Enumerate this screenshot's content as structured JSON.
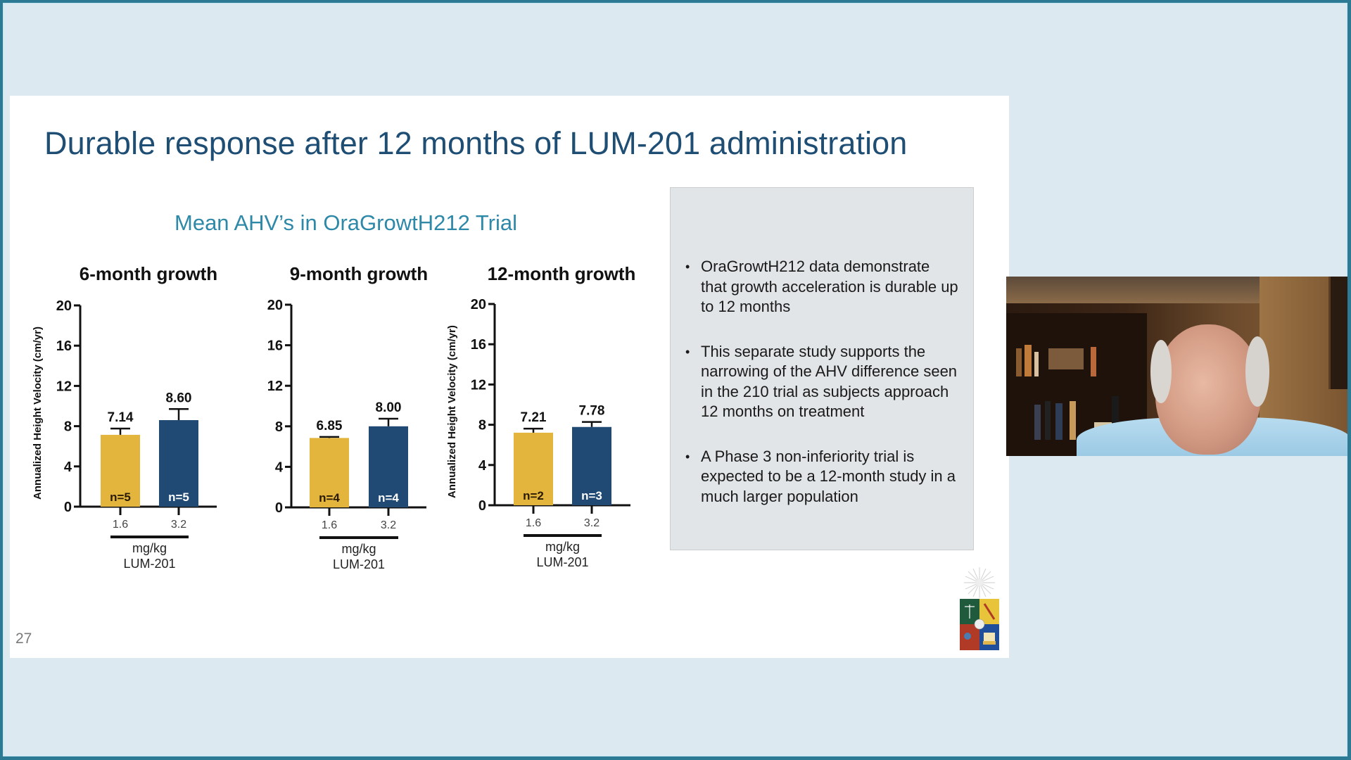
{
  "slide": {
    "title": "Durable response after 12 months of LUM-201 administration",
    "chart_subtitle": "Mean AHV’s in OraGrowtH212 Trial",
    "page_number": "27",
    "bullets": [
      "OraGrowtH212 data  demonstrate that growth acceleration is durable up to 12 months",
      "This separate study supports the narrowing of the AHV difference seen in the 210 trial as subjects approach 12 months on treatment",
      "A Phase 3 non-inferiority trial is expected to be a 12-month study in a much larger population"
    ],
    "bullet_glyph": "•"
  },
  "colors": {
    "dose_low": "#E3B53D",
    "dose_high": "#204A73",
    "title": "#1F4E74",
    "subtitle": "#2E88A8"
  },
  "chart_data": [
    {
      "type": "bar",
      "title": "6-month growth",
      "categories": [
        "1.6",
        "3.2"
      ],
      "values": [
        7.14,
        8.6
      ],
      "error_bars": [
        0.62,
        1.1
      ],
      "n_labels": [
        "n=5",
        "n=5"
      ],
      "value_labels": [
        "7.14",
        "8.60"
      ],
      "xlabel": "mg/kg",
      "xgroup_label": "LUM-201",
      "ylabel": "Annualized Height Velocity (cm/yr)",
      "yticks": [
        0,
        4,
        8,
        12,
        16,
        20
      ],
      "ylim": [
        0,
        20
      ],
      "grid": false
    },
    {
      "type": "bar",
      "title": "9-month growth",
      "categories": [
        "1.6",
        "3.2"
      ],
      "values": [
        6.85,
        8.0
      ],
      "error_bars": [
        0.1,
        0.75
      ],
      "n_labels": [
        "n=4",
        "n=4"
      ],
      "value_labels": [
        "6.85",
        "8.00"
      ],
      "xlabel": "mg/kg",
      "xgroup_label": "LUM-201",
      "ylabel": "",
      "yticks": [
        0,
        4,
        8,
        12,
        16,
        20
      ],
      "ylim": [
        0,
        20
      ],
      "grid": false
    },
    {
      "type": "bar",
      "title": "12-month growth",
      "categories": [
        "1.6",
        "3.2"
      ],
      "values": [
        7.21,
        7.78
      ],
      "error_bars": [
        0.4,
        0.5
      ],
      "n_labels": [
        "n=2",
        "n=3"
      ],
      "value_labels": [
        "7.21",
        "7.78"
      ],
      "xlabel": "mg/kg",
      "xgroup_label": "LUM-201",
      "ylabel": "Annualized Height Velocity (cm/yr)",
      "yticks": [
        0,
        4,
        8,
        12,
        16,
        20
      ],
      "ylim": [
        0,
        20
      ],
      "grid": false
    }
  ],
  "video": {
    "label": "presenter-video"
  }
}
